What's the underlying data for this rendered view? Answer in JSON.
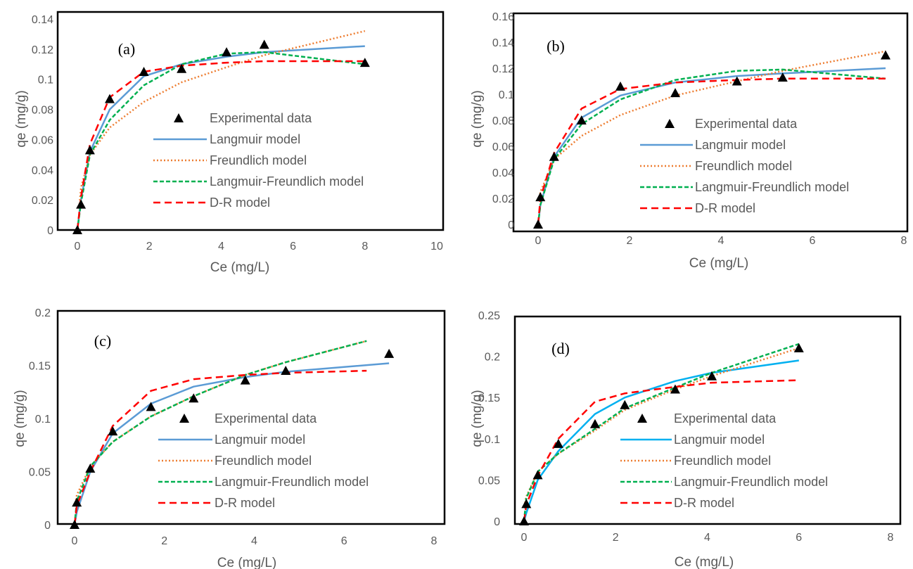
{
  "legend": {
    "experimental": "Experimental data",
    "langmuir": "Langmuir model",
    "freundlich": "Freundlich model",
    "langmuir_freundlich": "Langmuir-Freundlich model",
    "dr": "D-R model"
  },
  "colors": {
    "experimental": "#000000",
    "langmuir": "#5b9bd5",
    "langmuir_d": "#00b0f0",
    "freundlich": "#ed7d31",
    "langmuir_freundlich": "#00b050",
    "dr": "#ff0000"
  },
  "chart_data": [
    {
      "type": "scatter",
      "panel_label": "(a)",
      "xlabel": "Ce (mg/L)",
      "ylabel": "qe (mg/g)",
      "xlim": [
        0,
        10
      ],
      "ylim": [
        0,
        0.14
      ],
      "x_ticks": [
        0,
        2,
        4,
        6,
        8,
        10
      ],
      "y_ticks": [
        0,
        0.02,
        0.04,
        0.06,
        0.08,
        0.1,
        0.12,
        0.14
      ],
      "x_tick_labels": [
        "0",
        "2",
        "4",
        "6",
        "8",
        "10"
      ],
      "y_tick_labels": [
        "0",
        "0.02",
        "0.04",
        "0.06",
        "0.08",
        "0.1",
        "0.12",
        "0.14"
      ],
      "grid": false,
      "legend_position": "center-right",
      "experimental": {
        "x": [
          0,
          0.1,
          0.35,
          0.9,
          1.85,
          2.9,
          4.15,
          5.2,
          8.0
        ],
        "y": [
          0,
          0.017,
          0.053,
          0.087,
          0.105,
          0.107,
          0.118,
          0.123,
          0.111
        ]
      },
      "langmuir": {
        "x": [
          0,
          0.1,
          0.35,
          0.9,
          1.85,
          2.9,
          4.15,
          5.2,
          8.0
        ],
        "y": [
          0,
          0.02,
          0.052,
          0.08,
          0.102,
          0.11,
          0.115,
          0.118,
          0.122
        ]
      },
      "freundlich": {
        "x": [
          0.05,
          0.1,
          0.35,
          0.9,
          1.85,
          2.9,
          4.15,
          5.2,
          8.0
        ],
        "y": [
          0.015,
          0.028,
          0.05,
          0.068,
          0.085,
          0.098,
          0.108,
          0.116,
          0.132
        ]
      },
      "langmuir_freundlich": {
        "x": [
          0,
          0.1,
          0.35,
          0.9,
          1.85,
          2.9,
          4.15,
          5.2,
          8.0
        ],
        "y": [
          0,
          0.018,
          0.05,
          0.073,
          0.096,
          0.11,
          0.117,
          0.118,
          0.11
        ]
      },
      "dr": {
        "x": [
          0,
          0.1,
          0.35,
          0.9,
          1.85,
          2.9,
          4.15,
          5.2,
          8.0
        ],
        "y": [
          0,
          0.022,
          0.057,
          0.088,
          0.105,
          0.109,
          0.111,
          0.112,
          0.112
        ]
      }
    },
    {
      "type": "scatter",
      "panel_label": "(b)",
      "xlabel": "Ce (mg/L)",
      "ylabel": "qe (mg/g)",
      "xlim": [
        0,
        8
      ],
      "ylim": [
        0,
        0.16
      ],
      "x_ticks": [
        0,
        2,
        4,
        6,
        8
      ],
      "y_ticks": [
        0,
        0.02,
        0.04,
        0.06,
        0.08,
        0.1,
        0.12,
        0.14,
        0.16
      ],
      "x_tick_labels": [
        "0",
        "2",
        "4",
        "6",
        "8"
      ],
      "y_tick_labels": [
        "0",
        "0.02",
        "0.04",
        "0.06",
        "0.08",
        "0.1",
        "0.12",
        "0.14",
        "0.16"
      ],
      "grid": false,
      "legend_position": "center-right",
      "experimental": {
        "x": [
          0,
          0.05,
          0.35,
          0.95,
          1.8,
          3.0,
          4.35,
          5.35,
          7.6
        ],
        "y": [
          0,
          0.021,
          0.052,
          0.08,
          0.106,
          0.101,
          0.11,
          0.113,
          0.13
        ]
      },
      "langmuir": {
        "x": [
          0,
          0.05,
          0.35,
          0.95,
          1.8,
          3.0,
          4.35,
          5.35,
          7.6
        ],
        "y": [
          0,
          0.015,
          0.052,
          0.082,
          0.099,
          0.109,
          0.114,
          0.116,
          0.12
        ]
      },
      "freundlich": {
        "x": [
          0.02,
          0.05,
          0.35,
          0.95,
          1.8,
          3.0,
          4.35,
          5.35,
          7.6
        ],
        "y": [
          0.018,
          0.025,
          0.05,
          0.068,
          0.084,
          0.099,
          0.11,
          0.118,
          0.133
        ]
      },
      "langmuir_freundlich": {
        "x": [
          0,
          0.05,
          0.35,
          0.95,
          1.8,
          3.0,
          4.35,
          5.35,
          7.6
        ],
        "y": [
          0,
          0.015,
          0.05,
          0.077,
          0.096,
          0.111,
          0.118,
          0.119,
          0.112
        ]
      },
      "dr": {
        "x": [
          0,
          0.05,
          0.35,
          0.95,
          1.8,
          3.0,
          4.35,
          5.35,
          7.6
        ],
        "y": [
          0,
          0.02,
          0.055,
          0.089,
          0.104,
          0.109,
          0.111,
          0.112,
          0.112
        ]
      }
    },
    {
      "type": "scatter",
      "panel_label": "(c)",
      "xlabel": "Ce (mg/L)",
      "ylabel": "qe (mg/g)",
      "xlim": [
        0,
        8
      ],
      "ylim": [
        0,
        0.2
      ],
      "x_ticks": [
        0,
        2,
        4,
        6,
        8
      ],
      "y_ticks": [
        0,
        0.05,
        0.1,
        0.15,
        0.2
      ],
      "x_tick_labels": [
        "0",
        "2",
        "4",
        "6",
        "8"
      ],
      "y_tick_labels": [
        "0",
        "0.05",
        "0.1",
        "0.15",
        "0.2"
      ],
      "grid": false,
      "legend_position": "center-right",
      "experimental": {
        "x": [
          0,
          0.05,
          0.35,
          0.85,
          1.7,
          2.65,
          3.8,
          4.7,
          7.0
        ],
        "y": [
          0,
          0.021,
          0.053,
          0.088,
          0.111,
          0.119,
          0.136,
          0.145,
          0.161
        ]
      },
      "langmuir": {
        "x": [
          0,
          0.05,
          0.35,
          0.85,
          1.7,
          2.65,
          3.8,
          4.7,
          7.0
        ],
        "y": [
          0,
          0.012,
          0.05,
          0.086,
          0.114,
          0.13,
          0.139,
          0.144,
          0.152
        ]
      },
      "freundlich": {
        "x": [
          0.02,
          0.05,
          0.35,
          0.85,
          1.7,
          2.65,
          3.8,
          4.7,
          6.5
        ],
        "y": [
          0.02,
          0.028,
          0.055,
          0.078,
          0.102,
          0.121,
          0.141,
          0.153,
          0.173
        ]
      },
      "langmuir_freundlich": {
        "x": [
          0,
          0.05,
          0.35,
          0.85,
          1.7,
          2.65,
          3.8,
          4.7,
          6.5
        ],
        "y": [
          0,
          0.022,
          0.055,
          0.078,
          0.102,
          0.121,
          0.141,
          0.153,
          0.173
        ]
      },
      "dr": {
        "x": [
          0,
          0.05,
          0.35,
          0.85,
          1.7,
          2.65,
          3.8,
          4.7,
          6.5
        ],
        "y": [
          0,
          0.018,
          0.05,
          0.093,
          0.126,
          0.137,
          0.141,
          0.143,
          0.145
        ]
      }
    },
    {
      "type": "scatter",
      "panel_label": "(d)",
      "xlabel": "Ce (mg/L)",
      "ylabel": "qe (mg/g)",
      "xlim": [
        0,
        8
      ],
      "ylim": [
        0,
        0.25
      ],
      "x_ticks": [
        0,
        2,
        4,
        6,
        8
      ],
      "y_ticks": [
        0,
        0.05,
        0.1,
        0.15,
        0.2,
        0.25
      ],
      "x_tick_labels": [
        "0",
        "2",
        "4",
        "6",
        "8"
      ],
      "y_tick_labels": [
        "0",
        "0.05",
        "0.1",
        "0.15",
        "0.2",
        "0.25"
      ],
      "grid": false,
      "legend_position": "center-right",
      "experimental": {
        "x": [
          0,
          0.05,
          0.3,
          0.75,
          1.55,
          2.2,
          3.3,
          4.1,
          6.0
        ],
        "y": [
          0,
          0.021,
          0.056,
          0.094,
          0.118,
          0.141,
          0.16,
          0.176,
          0.21
        ]
      },
      "langmuir": {
        "x": [
          0,
          0.05,
          0.3,
          0.75,
          1.55,
          2.2,
          3.3,
          4.1,
          6.0
        ],
        "y": [
          0,
          0.01,
          0.05,
          0.085,
          0.13,
          0.15,
          0.17,
          0.18,
          0.195
        ]
      },
      "freundlich": {
        "x": [
          0.02,
          0.05,
          0.3,
          0.75,
          1.55,
          2.2,
          3.3,
          4.1,
          6.0
        ],
        "y": [
          0.022,
          0.03,
          0.06,
          0.082,
          0.11,
          0.135,
          0.16,
          0.176,
          0.21
        ]
      },
      "langmuir_freundlich": {
        "x": [
          0,
          0.05,
          0.3,
          0.75,
          1.55,
          2.2,
          3.3,
          4.1,
          6.0
        ],
        "y": [
          0,
          0.028,
          0.06,
          0.082,
          0.112,
          0.137,
          0.162,
          0.18,
          0.215
        ]
      },
      "dr": {
        "x": [
          0,
          0.05,
          0.3,
          0.75,
          1.55,
          2.2,
          3.3,
          4.1,
          6.0
        ],
        "y": [
          0,
          0.02,
          0.055,
          0.1,
          0.145,
          0.155,
          0.163,
          0.168,
          0.171
        ]
      }
    }
  ]
}
